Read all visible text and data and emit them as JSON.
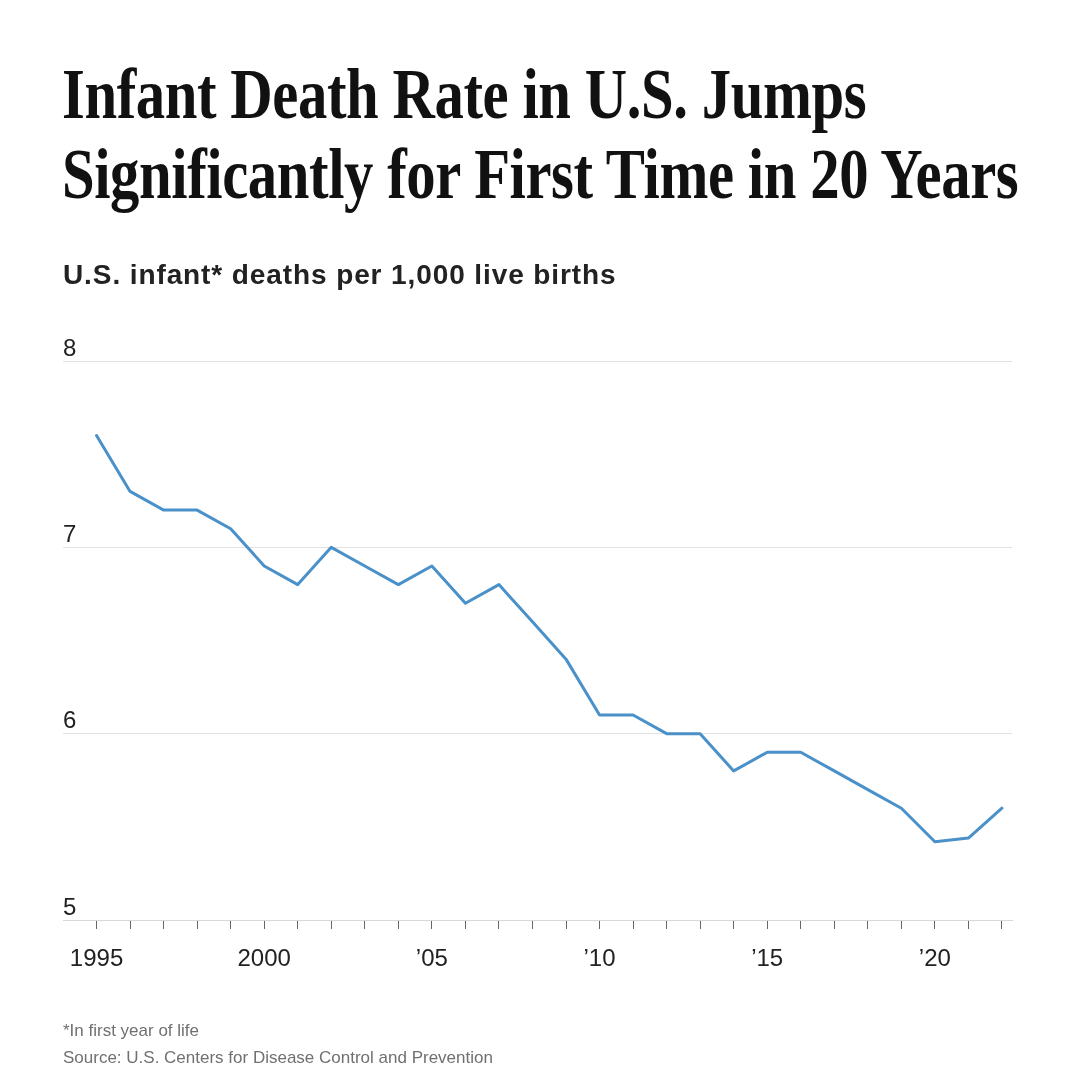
{
  "chart_data": {
    "type": "line",
    "title": "Infant Death Rate in U.S. Jumps Significantly for First Time in 20 Years",
    "subtitle": "U.S. infant* deaths per 1,000 live births",
    "annotations": [
      "*In first year of life",
      "Source: U.S. Centers for Disease Control and Prevention"
    ],
    "x": [
      1995,
      1996,
      1997,
      1998,
      1999,
      2000,
      2001,
      2002,
      2003,
      2004,
      2005,
      2006,
      2007,
      2008,
      2009,
      2010,
      2011,
      2012,
      2013,
      2014,
      2015,
      2016,
      2017,
      2018,
      2019,
      2020,
      2021,
      2022
    ],
    "values": [
      7.6,
      7.3,
      7.2,
      7.2,
      7.1,
      6.9,
      6.8,
      7.0,
      6.9,
      6.8,
      6.9,
      6.7,
      6.8,
      6.6,
      6.4,
      6.1,
      6.1,
      6.0,
      6.0,
      5.8,
      5.9,
      5.9,
      5.8,
      5.7,
      5.6,
      5.42,
      5.44,
      5.6
    ],
    "color": "#4a90c9",
    "xlim": [
      1994,
      2022.3
    ],
    "xticks": [
      1995,
      {
        "value": 1996,
        "label": null
      },
      {
        "value": 1997,
        "label": null
      },
      {
        "value": 1998,
        "label": null
      },
      {
        "value": 1999,
        "label": null
      },
      2000,
      {
        "value": 2001,
        "label": null
      },
      {
        "value": 2002,
        "label": null
      },
      {
        "value": 2003,
        "label": null
      },
      {
        "value": 2004,
        "label": null
      },
      {
        "value": 2005,
        "label": "’05"
      },
      {
        "value": 2006,
        "label": null
      },
      {
        "value": 2007,
        "label": null
      },
      {
        "value": 2008,
        "label": null
      },
      {
        "value": 2009,
        "label": null
      },
      {
        "value": 2010,
        "label": "’10"
      },
      {
        "value": 2011,
        "label": null
      },
      {
        "value": 2012,
        "label": null
      },
      {
        "value": 2013,
        "label": null
      },
      {
        "value": 2014,
        "label": null
      },
      {
        "value": 2015,
        "label": "’15"
      },
      {
        "value": 2016,
        "label": null
      },
      {
        "value": 2017,
        "label": null
      },
      {
        "value": 2018,
        "label": null
      },
      {
        "value": 2019,
        "label": null
      },
      {
        "value": 2020,
        "label": "’20"
      },
      {
        "value": 2021,
        "label": null
      },
      {
        "value": 2022,
        "label": null
      }
    ],
    "ylim": [
      5,
      8
    ],
    "yticks": [
      5,
      6,
      7,
      8
    ],
    "grid": "y",
    "legend": false,
    "marker": "none",
    "line_style": "solid"
  }
}
